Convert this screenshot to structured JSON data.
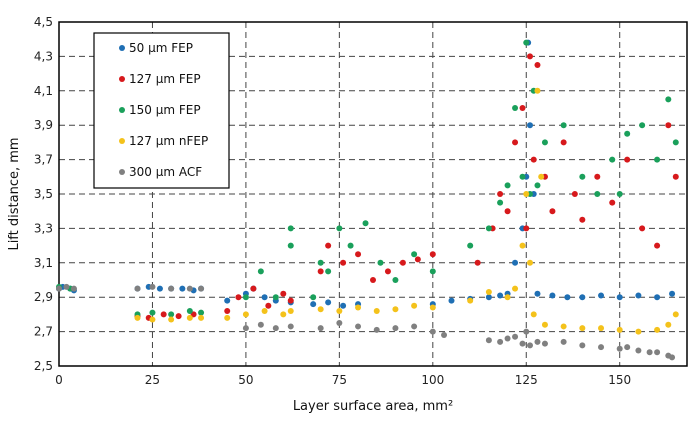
{
  "chart_data": {
    "type": "scatter",
    "xlabel": "Layer surface area, mm²",
    "ylabel": "Lift distance, mm",
    "xlim": [
      0,
      168
    ],
    "ylim": [
      2.5,
      4.5
    ],
    "xticks": [
      0,
      25,
      50,
      75,
      100,
      125,
      150
    ],
    "xtick_labels": [
      "0",
      "25",
      "50",
      "75",
      "100",
      "125",
      "150"
    ],
    "yticks": [
      2.5,
      2.7,
      2.9,
      3.1,
      3.3,
      3.5,
      3.7,
      3.9,
      4.1,
      4.3,
      4.5
    ],
    "ytick_labels": [
      "2,5",
      "2,7",
      "2,9",
      "3,1",
      "3,3",
      "3,5",
      "3,7",
      "3,9",
      "4,1",
      "4,3",
      "4,5"
    ],
    "grid": true,
    "legend_position": "top-left",
    "series": [
      {
        "name": "50 µm FEP",
        "color": "#1f6fb4",
        "points": [
          [
            0,
            2.95
          ],
          [
            1,
            2.96
          ],
          [
            3,
            2.95
          ],
          [
            4,
            2.94
          ],
          [
            21,
            2.95
          ],
          [
            24,
            2.96
          ],
          [
            27,
            2.95
          ],
          [
            30,
            2.95
          ],
          [
            33,
            2.95
          ],
          [
            36,
            2.94
          ],
          [
            38,
            2.95
          ],
          [
            45,
            2.88
          ],
          [
            50,
            2.92
          ],
          [
            52,
            2.95
          ],
          [
            55,
            2.9
          ],
          [
            58,
            2.88
          ],
          [
            62,
            2.87
          ],
          [
            68,
            2.86
          ],
          [
            72,
            2.87
          ],
          [
            76,
            2.85
          ],
          [
            80,
            2.86
          ],
          [
            100,
            2.86
          ],
          [
            105,
            2.88
          ],
          [
            110,
            2.89
          ],
          [
            115,
            2.9
          ],
          [
            118,
            2.91
          ],
          [
            120,
            2.92
          ],
          [
            122,
            3.1
          ],
          [
            124,
            3.3
          ],
          [
            125,
            3.6
          ],
          [
            125.5,
            4.38
          ],
          [
            126,
            3.9
          ],
          [
            127,
            3.5
          ],
          [
            128,
            2.92
          ],
          [
            132,
            2.91
          ],
          [
            136,
            2.9
          ],
          [
            140,
            2.9
          ],
          [
            145,
            2.91
          ],
          [
            150,
            2.9
          ],
          [
            155,
            2.91
          ],
          [
            160,
            2.9
          ],
          [
            164,
            2.92
          ]
        ]
      },
      {
        "name": "127 µm FEP",
        "color": "#d7191c",
        "points": [
          [
            21,
            2.79
          ],
          [
            24,
            2.78
          ],
          [
            28,
            2.8
          ],
          [
            32,
            2.79
          ],
          [
            36,
            2.8
          ],
          [
            45,
            2.82
          ],
          [
            48,
            2.9
          ],
          [
            52,
            2.95
          ],
          [
            56,
            2.85
          ],
          [
            60,
            2.92
          ],
          [
            62,
            2.88
          ],
          [
            70,
            3.05
          ],
          [
            72,
            3.2
          ],
          [
            76,
            3.1
          ],
          [
            80,
            3.15
          ],
          [
            84,
            3.0
          ],
          [
            88,
            3.05
          ],
          [
            92,
            3.1
          ],
          [
            96,
            3.12
          ],
          [
            100,
            3.15
          ],
          [
            112,
            3.1
          ],
          [
            116,
            3.3
          ],
          [
            118,
            3.5
          ],
          [
            120,
            3.4
          ],
          [
            122,
            3.8
          ],
          [
            124,
            4.0
          ],
          [
            125,
            3.3
          ],
          [
            126,
            4.3
          ],
          [
            127,
            3.7
          ],
          [
            128,
            4.25
          ],
          [
            130,
            3.6
          ],
          [
            132,
            3.4
          ],
          [
            135,
            3.8
          ],
          [
            138,
            3.5
          ],
          [
            140,
            3.35
          ],
          [
            144,
            3.6
          ],
          [
            148,
            3.45
          ],
          [
            152,
            3.7
          ],
          [
            156,
            3.3
          ],
          [
            160,
            3.2
          ],
          [
            163,
            3.9
          ],
          [
            165,
            3.6
          ]
        ]
      },
      {
        "name": "150 µm FEP",
        "color": "#1aa05b",
        "points": [
          [
            0,
            2.96
          ],
          [
            3,
            2.95
          ],
          [
            21,
            2.8
          ],
          [
            25,
            2.81
          ],
          [
            30,
            2.8
          ],
          [
            35,
            2.82
          ],
          [
            38,
            2.81
          ],
          [
            50,
            2.9
          ],
          [
            54,
            3.05
          ],
          [
            58,
            2.9
          ],
          [
            62,
            3.3
          ],
          [
            62,
            3.2
          ],
          [
            68,
            2.9
          ],
          [
            70,
            3.1
          ],
          [
            72,
            3.05
          ],
          [
            75,
            3.3
          ],
          [
            78,
            3.2
          ],
          [
            82,
            3.33
          ],
          [
            86,
            3.1
          ],
          [
            90,
            3.0
          ],
          [
            95,
            3.15
          ],
          [
            100,
            3.05
          ],
          [
            110,
            3.2
          ],
          [
            115,
            3.3
          ],
          [
            118,
            3.45
          ],
          [
            120,
            3.55
          ],
          [
            122,
            4.0
          ],
          [
            124,
            3.6
          ],
          [
            125,
            4.38
          ],
          [
            126,
            3.5
          ],
          [
            127,
            4.1
          ],
          [
            128,
            3.55
          ],
          [
            130,
            3.8
          ],
          [
            135,
            3.9
          ],
          [
            140,
            3.6
          ],
          [
            144,
            3.5
          ],
          [
            148,
            3.7
          ],
          [
            150,
            3.5
          ],
          [
            152,
            3.85
          ],
          [
            156,
            3.9
          ],
          [
            160,
            3.7
          ],
          [
            163,
            4.05
          ],
          [
            165,
            3.8
          ]
        ]
      },
      {
        "name": "127 µm nFEP",
        "color": "#f4c21b",
        "points": [
          [
            21,
            2.78
          ],
          [
            25,
            2.77
          ],
          [
            30,
            2.77
          ],
          [
            35,
            2.78
          ],
          [
            38,
            2.78
          ],
          [
            45,
            2.78
          ],
          [
            50,
            2.8
          ],
          [
            55,
            2.82
          ],
          [
            60,
            2.8
          ],
          [
            62,
            2.82
          ],
          [
            70,
            2.83
          ],
          [
            75,
            2.82
          ],
          [
            80,
            2.84
          ],
          [
            85,
            2.82
          ],
          [
            90,
            2.83
          ],
          [
            95,
            2.85
          ],
          [
            100,
            2.84
          ],
          [
            110,
            2.88
          ],
          [
            115,
            2.93
          ],
          [
            120,
            2.9
          ],
          [
            122,
            2.95
          ],
          [
            124,
            3.2
          ],
          [
            125,
            3.5
          ],
          [
            126,
            3.1
          ],
          [
            127,
            2.8
          ],
          [
            128,
            4.1
          ],
          [
            129,
            3.6
          ],
          [
            130,
            2.74
          ],
          [
            135,
            2.73
          ],
          [
            140,
            2.72
          ],
          [
            145,
            2.72
          ],
          [
            150,
            2.71
          ],
          [
            155,
            2.7
          ],
          [
            160,
            2.71
          ],
          [
            163,
            2.74
          ],
          [
            165,
            2.8
          ]
        ]
      },
      {
        "name": "300 µm ACF",
        "color": "#808080",
        "points": [
          [
            0,
            2.95
          ],
          [
            2,
            2.96
          ],
          [
            4,
            2.95
          ],
          [
            21,
            2.95
          ],
          [
            25,
            2.96
          ],
          [
            30,
            2.95
          ],
          [
            35,
            2.95
          ],
          [
            38,
            2.95
          ],
          [
            50,
            2.72
          ],
          [
            54,
            2.74
          ],
          [
            58,
            2.72
          ],
          [
            62,
            2.73
          ],
          [
            70,
            2.72
          ],
          [
            75,
            2.75
          ],
          [
            80,
            2.73
          ],
          [
            85,
            2.71
          ],
          [
            90,
            2.72
          ],
          [
            95,
            2.73
          ],
          [
            100,
            2.7
          ],
          [
            103,
            2.68
          ],
          [
            115,
            2.65
          ],
          [
            118,
            2.64
          ],
          [
            120,
            2.66
          ],
          [
            122,
            2.67
          ],
          [
            124,
            2.63
          ],
          [
            125,
            2.7
          ],
          [
            126,
            2.62
          ],
          [
            128,
            2.64
          ],
          [
            130,
            2.63
          ],
          [
            135,
            2.64
          ],
          [
            140,
            2.62
          ],
          [
            145,
            2.61
          ],
          [
            150,
            2.6
          ],
          [
            152,
            2.61
          ],
          [
            155,
            2.59
          ],
          [
            158,
            2.58
          ],
          [
            160,
            2.58
          ],
          [
            163,
            2.56
          ],
          [
            164,
            2.55
          ]
        ]
      }
    ]
  }
}
